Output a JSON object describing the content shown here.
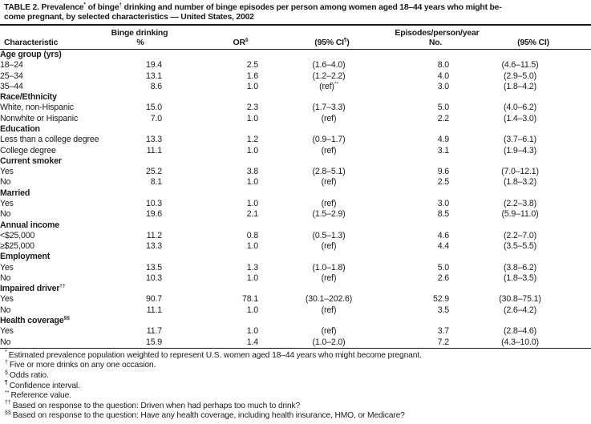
{
  "page": {
    "background": "#ffffff",
    "text_color": "#1a1a1a"
  },
  "title": {
    "line1": "TABLE 2. Prevalence^{*} of binge^{†} drinking and number of binge episodes per person among women aged 18–44 years who might be-",
    "line2": "come pregnant, by selected characteristics — United States, 2002"
  },
  "header": {
    "group_binge": "Binge drinking",
    "group_episodes": "Episodes/person/year",
    "characteristic": "Characteristic",
    "pct": "%",
    "or": "OR^{§}",
    "ci_or": "(95% CI^{¶})",
    "no": "No.",
    "ci_no": "(95% CI)"
  },
  "table": {
    "sections": [
      {
        "label": "Age group (yrs)",
        "rows": [
          {
            "label": "18–24",
            "pct": "19.4",
            "or": "2.5",
            "ci1": "(1.6–4.0)",
            "no": "8.0",
            "ci2": "(4.6–11.5)"
          },
          {
            "label": "25–34",
            "pct": "13.1",
            "or": "1.6",
            "ci1": "(1.2–2.2)",
            "no": "4.0",
            "ci2": "(2.9–5.0)"
          },
          {
            "label": "35–44",
            "pct": "8.6",
            "or": "1.0",
            "ci1": "(ref)^{**}",
            "no": "3.0",
            "ci2": "(1.8–4.2)"
          }
        ]
      },
      {
        "label": "Race/Ethnicity",
        "rows": [
          {
            "label": "White, non-Hispanic",
            "pct": "15.0",
            "or": "2.3",
            "ci1": "(1.7–3.3)",
            "no": "5.0",
            "ci2": "(4.0–6.2)"
          },
          {
            "label": "Nonwhite or Hispanic",
            "pct": "7.0",
            "or": "1.0",
            "ci1": "(ref)",
            "no": "2.2",
            "ci2": "(1.4–3.0)"
          }
        ]
      },
      {
        "label": "Education",
        "rows": [
          {
            "label": "Less than a college degree",
            "pct": "13.3",
            "or": "1.2",
            "ci1": "(0.9–1.7)",
            "no": "4.9",
            "ci2": "(3.7–6.1)"
          },
          {
            "label": "College degree",
            "pct": "11.1",
            "or": "1.0",
            "ci1": "(ref)",
            "no": "3.1",
            "ci2": "(1.9–4.3)"
          }
        ]
      },
      {
        "label": "Current smoker",
        "rows": [
          {
            "label": "Yes",
            "pct": "25.2",
            "or": "3.8",
            "ci1": "(2.8–5.1)",
            "no": "9.6",
            "ci2": "(7.0–12.1)"
          },
          {
            "label": "No",
            "pct": "8.1",
            "or": "1.0",
            "ci1": "(ref)",
            "no": "2.5",
            "ci2": "(1.8–3.2)"
          }
        ]
      },
      {
        "label": "Married",
        "rows": [
          {
            "label": "Yes",
            "pct": "10.3",
            "or": "1.0",
            "ci1": "(ref)",
            "no": "3.0",
            "ci2": "(2.2–3.8)"
          },
          {
            "label": "No",
            "pct": "19.6",
            "or": "2.1",
            "ci1": "(1.5–2.9)",
            "no": "8.5",
            "ci2": "(5.9–11.0)"
          }
        ]
      },
      {
        "label": "Annual income",
        "rows": [
          {
            "label": "<$25,000",
            "pct": "11.2",
            "or": "0.8",
            "ci1": "(0.5–1.3)",
            "no": "4.6",
            "ci2": "(2.2–7.0)"
          },
          {
            "label": "≥$25,000",
            "pct": "13.3",
            "or": "1.0",
            "ci1": "(ref)",
            "no": "4.4",
            "ci2": "(3.5–5.5)"
          }
        ]
      },
      {
        "label": "Employment",
        "rows": [
          {
            "label": "Yes",
            "pct": "13.5",
            "or": "1.3",
            "ci1": "(1.0–1.8)",
            "no": "5.0",
            "ci2": "(3.8–6.2)"
          },
          {
            "label": "No",
            "pct": "10.3",
            "or": "1.0",
            "ci1": "(ref)",
            "no": "2.6",
            "ci2": "(1.8–3.5)"
          }
        ]
      },
      {
        "label": "Impaired driver^{††}",
        "rows": [
          {
            "label": "Yes",
            "pct": "90.7",
            "or": "78.1",
            "ci1": "(30.1–202.6)",
            "no": "52.9",
            "ci2": "(30.8–75.1)"
          },
          {
            "label": "No",
            "pct": "11.1",
            "or": "1.0",
            "ci1": "(ref)",
            "no": "3.5",
            "ci2": "(2.6–4.2)"
          }
        ]
      },
      {
        "label": "Health coverage^{§§}",
        "rows": [
          {
            "label": "Yes",
            "pct": "11.7",
            "or": "1.0",
            "ci1": "(ref)",
            "no": "3.7",
            "ci2": "(2.8–4.6)"
          },
          {
            "label": "No",
            "pct": "15.9",
            "or": "1.4",
            "ci1": "(1.0–2.0)",
            "no": "7.2",
            "ci2": "(4.3–10.0)"
          }
        ]
      }
    ]
  },
  "footnotes": [
    {
      "marker": "*",
      "text": "Estimated prevalence population weighted to represent U.S. women aged 18–44 years who might become pregnant."
    },
    {
      "marker": "†",
      "text": "Five or more drinks on any one occasion."
    },
    {
      "marker": "§",
      "text": "Odds ratio."
    },
    {
      "marker": "¶",
      "text": "Confidence interval."
    },
    {
      "marker": "**",
      "text": "Reference value."
    },
    {
      "marker": "††",
      "text": "Based on response to the question: Driven when had perhaps too much to drink?"
    },
    {
      "marker": "§§",
      "text": "Based on response to the question: Have any health coverage, including health insurance, HMO, or Medicare?"
    }
  ]
}
